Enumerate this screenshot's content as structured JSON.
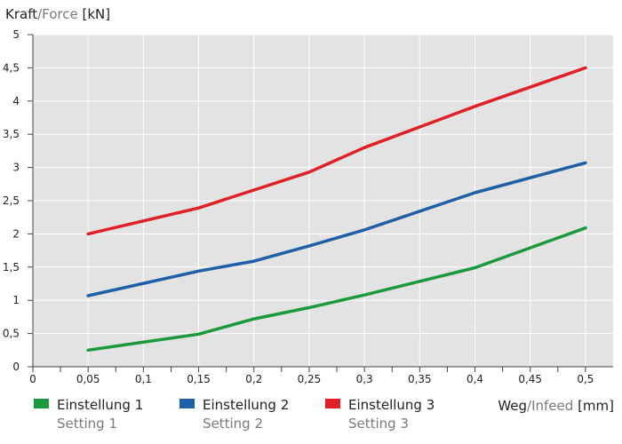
{
  "chart_data": {
    "type": "line",
    "y_title": {
      "primary": "Kraft",
      "separator": "/",
      "secondary": "Force",
      "unit": " [kN]"
    },
    "x_title": {
      "primary": "Weg",
      "separator": "/",
      "secondary": "Infeed",
      "unit": " [mm]"
    },
    "xlim": [
      0,
      0.525
    ],
    "ylim": [
      0,
      5
    ],
    "x_ticks": [
      {
        "value": 0,
        "label": "0"
      },
      {
        "value": 0.05,
        "label": "0,05"
      },
      {
        "value": 0.1,
        "label": "0,1"
      },
      {
        "value": 0.15,
        "label": "0,15"
      },
      {
        "value": 0.2,
        "label": "0,2"
      },
      {
        "value": 0.25,
        "label": "0,25"
      },
      {
        "value": 0.3,
        "label": "0,3"
      },
      {
        "value": 0.35,
        "label": "0,35"
      },
      {
        "value": 0.4,
        "label": "0,4"
      },
      {
        "value": 0.45,
        "label": "0,45"
      },
      {
        "value": 0.5,
        "label": "0,5"
      }
    ],
    "y_ticks": [
      {
        "value": 0,
        "label": "0"
      },
      {
        "value": 0.5,
        "label": "0,5"
      },
      {
        "value": 1,
        "label": "1"
      },
      {
        "value": 1.5,
        "label": "1,5"
      },
      {
        "value": 2,
        "label": "2"
      },
      {
        "value": 2.5,
        "label": "2,5"
      },
      {
        "value": 3,
        "label": "3"
      },
      {
        "value": 3.5,
        "label": "3,5"
      },
      {
        "value": 4,
        "label": "4"
      },
      {
        "value": 4.5,
        "label": "4,5"
      },
      {
        "value": 5,
        "label": "5"
      }
    ],
    "grid": true,
    "legend_position": "bottom",
    "plot_background": "#e3e3e3",
    "grid_color": "#ffffff",
    "series": [
      {
        "name": "Einstellung 1",
        "subname": "Setting 1",
        "color": "#1a9a3c",
        "x": [
          0.05,
          0.15,
          0.2,
          0.25,
          0.3,
          0.4,
          0.5
        ],
        "y": [
          0.25,
          0.49,
          0.72,
          0.89,
          1.08,
          1.49,
          2.09
        ]
      },
      {
        "name": "Einstellung 2",
        "subname": "Setting 2",
        "color": "#1f5fa8",
        "x": [
          0.05,
          0.15,
          0.2,
          0.25,
          0.3,
          0.4,
          0.5
        ],
        "y": [
          1.07,
          1.44,
          1.59,
          1.82,
          2.06,
          2.62,
          3.07
        ]
      },
      {
        "name": "Einstellung 3",
        "subname": "Setting 3",
        "color": "#e01f26",
        "x": [
          0.05,
          0.15,
          0.2,
          0.25,
          0.3,
          0.4,
          0.5
        ],
        "y": [
          2.0,
          2.39,
          2.66,
          2.93,
          3.3,
          3.92,
          4.5
        ]
      }
    ]
  }
}
